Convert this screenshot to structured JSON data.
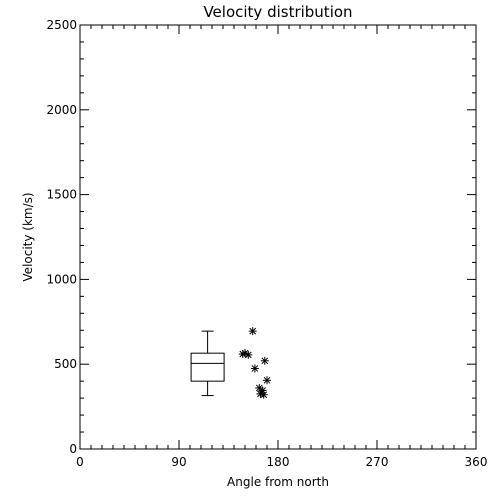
{
  "chart_data": {
    "type": "scatter",
    "title": "Velocity distribution",
    "xlabel": "Angle from north",
    "ylabel": "Velocity (km/s)",
    "xlim": [
      0,
      360
    ],
    "ylim": [
      0,
      2500
    ],
    "xticks": [
      0,
      90,
      180,
      270,
      360
    ],
    "yticks": [
      0,
      500,
      1000,
      1500,
      2000,
      2500
    ],
    "x_minor_step": 10,
    "y_minor_step": 100,
    "grid": false,
    "boxplot": {
      "x_center": 116,
      "x_width": 30,
      "whisker_low": 315,
      "q1": 400,
      "median": 505,
      "q3": 565,
      "whisker_high": 695
    },
    "points": [
      {
        "x": 157,
        "y": 695
      },
      {
        "x": 150,
        "y": 565
      },
      {
        "x": 153,
        "y": 555
      },
      {
        "x": 148,
        "y": 560
      },
      {
        "x": 168,
        "y": 520
      },
      {
        "x": 159,
        "y": 475
      },
      {
        "x": 170,
        "y": 405
      },
      {
        "x": 163,
        "y": 360
      },
      {
        "x": 166,
        "y": 345
      },
      {
        "x": 164,
        "y": 325
      },
      {
        "x": 167,
        "y": 320
      }
    ]
  }
}
